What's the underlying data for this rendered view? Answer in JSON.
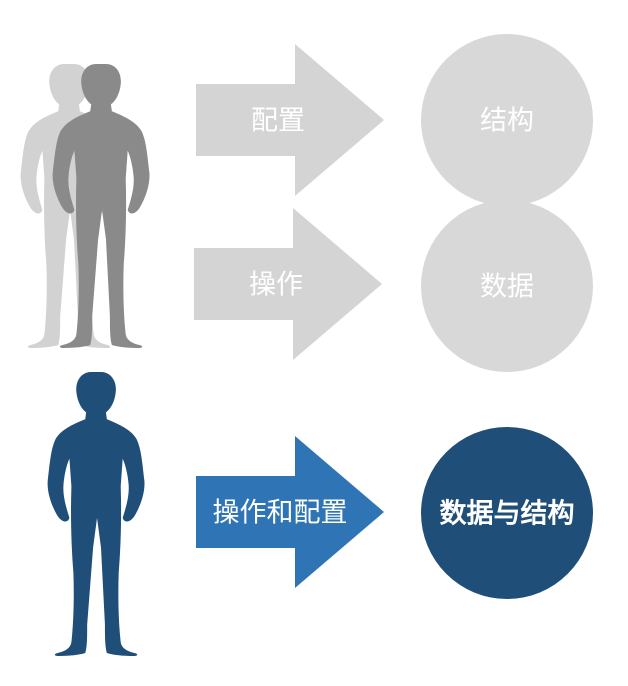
{
  "top_group": {
    "arrow_config_label": "配置",
    "arrow_operate_label": "操作",
    "circle_structure_label": "结构",
    "circle_data_label": "数据"
  },
  "bottom_group": {
    "arrow_label": "操作和配置",
    "circle_label": "数据与结构"
  },
  "colors": {
    "gray_light": "#d4d4d4",
    "gray_mid": "#d8d8d8",
    "gray_dark": "#8a8a8a",
    "gray_faint": "#d2d2d2",
    "blue_arrow": "#2f74b5",
    "blue_dark": "#1f4e79",
    "label_text": "#ffffff"
  },
  "icons": {
    "figure": "person-silhouette-icon",
    "arrow": "right-arrow-shape",
    "circle": "circle-shape"
  }
}
